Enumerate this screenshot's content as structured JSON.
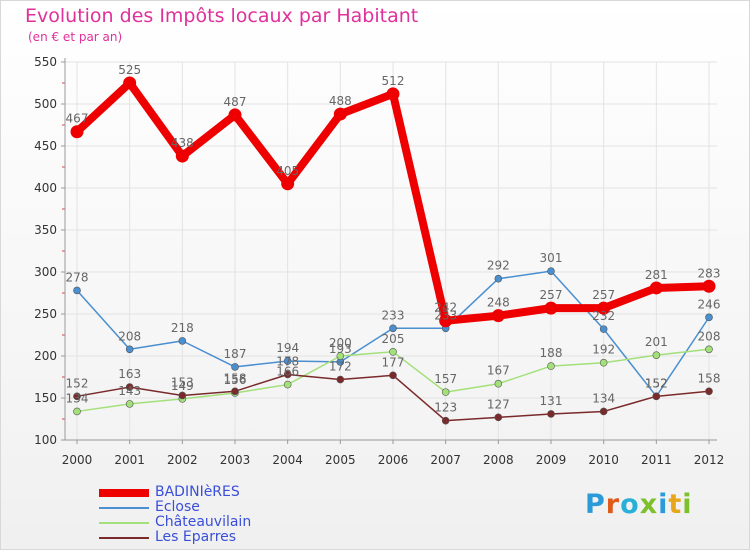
{
  "header": {
    "title": "Evolution des Impôts locaux par Habitant",
    "subtitle": "(en € et par an)"
  },
  "colors": {
    "title": "#e0309a",
    "grid": "#e3e3e3",
    "axis": "#9a9a9a",
    "legend_text": "#3a4fd8"
  },
  "brand": {
    "logo_text": "Proxiti",
    "letter_colors": [
      "#2a9ad8",
      "#e05a1a",
      "#2ab0d8",
      "#7cc12a",
      "#2a9ad8",
      "#e8a71a",
      "#7cc12a"
    ]
  },
  "chart_data": {
    "type": "line",
    "title": "Evolution des Impôts locaux par Habitant",
    "subtitle": "(en € et par an)",
    "xlabel": "",
    "ylabel": "",
    "ylim": [
      100,
      550
    ],
    "yticks": [
      100,
      150,
      200,
      250,
      300,
      350,
      400,
      450,
      500,
      550
    ],
    "grid": true,
    "legend_position": "bottom-left",
    "x": [
      "2000",
      "2001",
      "2002",
      "2003",
      "2004",
      "2005",
      "2006",
      "2007",
      "2008",
      "2009",
      "2010",
      "2011",
      "2012"
    ],
    "series": [
      {
        "name": "BADINIèRES",
        "color": "#ee0000",
        "emphasis": true,
        "values": [
          467,
          525,
          438,
          487,
          405,
          488,
          512,
          242,
          248,
          257,
          257,
          281,
          283
        ]
      },
      {
        "name": "Eclose",
        "color": "#4a8fcf",
        "values": [
          278,
          208,
          218,
          187,
          194,
          193,
          233,
          233,
          292,
          301,
          232,
          152,
          246
        ]
      },
      {
        "name": "Châteauvilain",
        "color": "#a3e07a",
        "values": [
          134,
          143,
          149,
          156,
          166,
          200,
          205,
          157,
          167,
          188,
          192,
          201,
          208
        ]
      },
      {
        "name": "Les Eparres",
        "color": "#7a2a2a",
        "values": [
          152,
          163,
          153,
          158,
          178,
          172,
          177,
          123,
          127,
          131,
          134,
          152,
          158
        ]
      }
    ]
  }
}
